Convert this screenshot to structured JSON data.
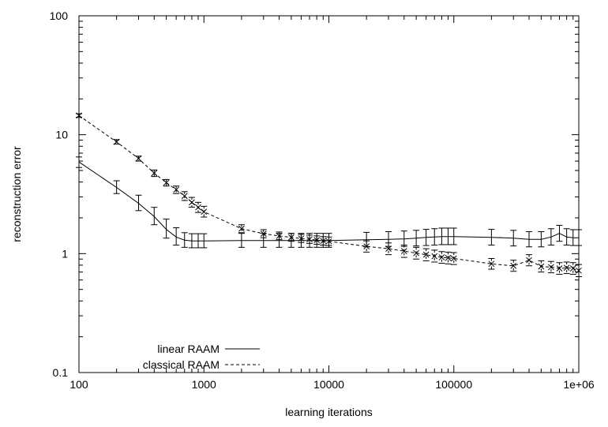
{
  "chart_data": {
    "type": "line",
    "xlabel": "learning iterations",
    "ylabel": "reconstruction error",
    "x_scale": "log",
    "y_scale": "log",
    "xlim": [
      100,
      1000000
    ],
    "ylim": [
      0.1,
      100
    ],
    "x_ticks": [
      100,
      1000,
      10000,
      100000,
      1000000
    ],
    "x_tick_labels": [
      "100",
      "1000",
      "10000",
      "100000",
      "1e+06"
    ],
    "y_ticks": [
      0.1,
      1,
      10,
      100
    ],
    "y_tick_labels": [
      "0.1",
      "1",
      "10",
      "100"
    ],
    "grid": false,
    "legend_position": "bottom-left",
    "series": [
      {
        "name": "linear RAAM",
        "line_style": "solid",
        "marker": "none",
        "points": [
          {
            "x": 100,
            "y": 5.9,
            "low": 5.3,
            "high": 6.5
          },
          {
            "x": 200,
            "y": 3.6,
            "low": 3.2,
            "high": 4.1
          },
          {
            "x": 300,
            "y": 2.65,
            "low": 2.3,
            "high": 3.1
          },
          {
            "x": 400,
            "y": 2.05,
            "low": 1.75,
            "high": 2.45
          },
          {
            "x": 500,
            "y": 1.6,
            "low": 1.35,
            "high": 1.95
          },
          {
            "x": 600,
            "y": 1.38,
            "low": 1.18,
            "high": 1.65
          },
          {
            "x": 700,
            "y": 1.3,
            "low": 1.13,
            "high": 1.5
          },
          {
            "x": 800,
            "y": 1.28,
            "low": 1.12,
            "high": 1.47
          },
          {
            "x": 900,
            "y": 1.28,
            "low": 1.12,
            "high": 1.47
          },
          {
            "x": 1000,
            "y": 1.28,
            "low": 1.12,
            "high": 1.47
          },
          {
            "x": 2000,
            "y": 1.29,
            "low": 1.13,
            "high": 1.48
          },
          {
            "x": 3000,
            "y": 1.29,
            "low": 1.13,
            "high": 1.48
          },
          {
            "x": 4000,
            "y": 1.29,
            "low": 1.13,
            "high": 1.48
          },
          {
            "x": 5000,
            "y": 1.29,
            "low": 1.13,
            "high": 1.48
          },
          {
            "x": 6000,
            "y": 1.29,
            "low": 1.13,
            "high": 1.48
          },
          {
            "x": 7000,
            "y": 1.29,
            "low": 1.13,
            "high": 1.48
          },
          {
            "x": 8000,
            "y": 1.29,
            "low": 1.13,
            "high": 1.48
          },
          {
            "x": 9000,
            "y": 1.29,
            "low": 1.13,
            "high": 1.48
          },
          {
            "x": 10000,
            "y": 1.29,
            "low": 1.13,
            "high": 1.48
          },
          {
            "x": 20000,
            "y": 1.31,
            "low": 1.14,
            "high": 1.51
          },
          {
            "x": 30000,
            "y": 1.32,
            "low": 1.15,
            "high": 1.53
          },
          {
            "x": 40000,
            "y": 1.33,
            "low": 1.15,
            "high": 1.55
          },
          {
            "x": 50000,
            "y": 1.35,
            "low": 1.16,
            "high": 1.57
          },
          {
            "x": 60000,
            "y": 1.37,
            "low": 1.17,
            "high": 1.6
          },
          {
            "x": 70000,
            "y": 1.38,
            "low": 1.18,
            "high": 1.62
          },
          {
            "x": 80000,
            "y": 1.39,
            "low": 1.19,
            "high": 1.64
          },
          {
            "x": 90000,
            "y": 1.39,
            "low": 1.19,
            "high": 1.64
          },
          {
            "x": 100000,
            "y": 1.39,
            "low": 1.19,
            "high": 1.64
          },
          {
            "x": 200000,
            "y": 1.37,
            "low": 1.18,
            "high": 1.6
          },
          {
            "x": 300000,
            "y": 1.35,
            "low": 1.16,
            "high": 1.57
          },
          {
            "x": 400000,
            "y": 1.32,
            "low": 1.14,
            "high": 1.53
          },
          {
            "x": 500000,
            "y": 1.32,
            "low": 1.14,
            "high": 1.53
          },
          {
            "x": 600000,
            "y": 1.38,
            "low": 1.18,
            "high": 1.62
          },
          {
            "x": 700000,
            "y": 1.48,
            "low": 1.27,
            "high": 1.73
          },
          {
            "x": 800000,
            "y": 1.38,
            "low": 1.18,
            "high": 1.62
          },
          {
            "x": 900000,
            "y": 1.36,
            "low": 1.17,
            "high": 1.59
          },
          {
            "x": 1000000,
            "y": 1.36,
            "low": 1.17,
            "high": 1.59
          }
        ]
      },
      {
        "name": "classical RAAM",
        "line_style": "dashed",
        "marker": "x",
        "points": [
          {
            "x": 100,
            "y": 14.5,
            "low": 14.0,
            "high": 15.0
          },
          {
            "x": 200,
            "y": 8.7,
            "low": 8.35,
            "high": 9.1
          },
          {
            "x": 300,
            "y": 6.3,
            "low": 6.0,
            "high": 6.6
          },
          {
            "x": 400,
            "y": 4.75,
            "low": 4.45,
            "high": 5.05
          },
          {
            "x": 500,
            "y": 3.95,
            "low": 3.7,
            "high": 4.2
          },
          {
            "x": 600,
            "y": 3.45,
            "low": 3.2,
            "high": 3.7
          },
          {
            "x": 700,
            "y": 3.05,
            "low": 2.8,
            "high": 3.32
          },
          {
            "x": 800,
            "y": 2.7,
            "low": 2.46,
            "high": 2.97
          },
          {
            "x": 900,
            "y": 2.45,
            "low": 2.22,
            "high": 2.7
          },
          {
            "x": 1000,
            "y": 2.25,
            "low": 2.03,
            "high": 2.5
          },
          {
            "x": 2000,
            "y": 1.62,
            "low": 1.5,
            "high": 1.75
          },
          {
            "x": 3000,
            "y": 1.47,
            "low": 1.36,
            "high": 1.59
          },
          {
            "x": 4000,
            "y": 1.41,
            "low": 1.31,
            "high": 1.52
          },
          {
            "x": 5000,
            "y": 1.37,
            "low": 1.27,
            "high": 1.48
          },
          {
            "x": 6000,
            "y": 1.34,
            "low": 1.24,
            "high": 1.45
          },
          {
            "x": 7000,
            "y": 1.32,
            "low": 1.22,
            "high": 1.43
          },
          {
            "x": 8000,
            "y": 1.3,
            "low": 1.2,
            "high": 1.41
          },
          {
            "x": 9000,
            "y": 1.28,
            "low": 1.18,
            "high": 1.39
          },
          {
            "x": 10000,
            "y": 1.27,
            "low": 1.17,
            "high": 1.38
          },
          {
            "x": 20000,
            "y": 1.15,
            "low": 1.03,
            "high": 1.28
          },
          {
            "x": 30000,
            "y": 1.1,
            "low": 0.98,
            "high": 1.23
          },
          {
            "x": 40000,
            "y": 1.05,
            "low": 0.93,
            "high": 1.18
          },
          {
            "x": 50000,
            "y": 1.01,
            "low": 0.9,
            "high": 1.13
          },
          {
            "x": 60000,
            "y": 0.98,
            "low": 0.87,
            "high": 1.1
          },
          {
            "x": 70000,
            "y": 0.95,
            "low": 0.85,
            "high": 1.07
          },
          {
            "x": 80000,
            "y": 0.93,
            "low": 0.83,
            "high": 1.04
          },
          {
            "x": 90000,
            "y": 0.92,
            "low": 0.82,
            "high": 1.03
          },
          {
            "x": 100000,
            "y": 0.91,
            "low": 0.81,
            "high": 1.02
          },
          {
            "x": 200000,
            "y": 0.82,
            "low": 0.74,
            "high": 0.91
          },
          {
            "x": 300000,
            "y": 0.79,
            "low": 0.71,
            "high": 0.88
          },
          {
            "x": 400000,
            "y": 0.88,
            "low": 0.79,
            "high": 0.98
          },
          {
            "x": 500000,
            "y": 0.78,
            "low": 0.7,
            "high": 0.87
          },
          {
            "x": 600000,
            "y": 0.77,
            "low": 0.69,
            "high": 0.86
          },
          {
            "x": 700000,
            "y": 0.75,
            "low": 0.67,
            "high": 0.84
          },
          {
            "x": 800000,
            "y": 0.76,
            "low": 0.68,
            "high": 0.85
          },
          {
            "x": 900000,
            "y": 0.75,
            "low": 0.67,
            "high": 0.84
          },
          {
            "x": 1000000,
            "y": 0.72,
            "low": 0.64,
            "high": 0.81
          }
        ]
      }
    ]
  }
}
